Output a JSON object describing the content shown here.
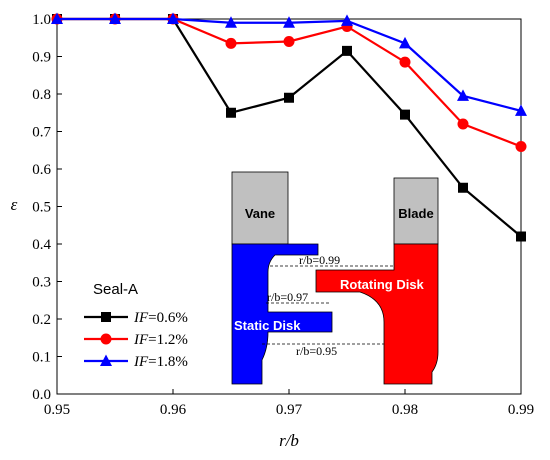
{
  "chart_data": {
    "type": "line",
    "title": "",
    "xlabel": "r/b",
    "ylabel": "ε",
    "xlim": [
      0.95,
      0.99
    ],
    "ylim": [
      0.0,
      1.0
    ],
    "x_ticks": [
      "0.95",
      "0.96",
      "0.97",
      "0.98",
      "0.99"
    ],
    "y_ticks": [
      "0.0",
      "0.1",
      "0.2",
      "0.3",
      "0.4",
      "0.5",
      "0.6",
      "0.7",
      "0.8",
      "0.9",
      "1.0"
    ],
    "x": [
      0.95,
      0.955,
      0.96,
      0.965,
      0.97,
      0.975,
      0.98,
      0.985,
      0.99
    ],
    "legend_title": "Seal-A",
    "legend_position": "bottom-left",
    "series": [
      {
        "name": "IF=0.6%",
        "name_italic": "IF",
        "name_rest": "=0.6%",
        "color": "#000000",
        "marker": "square",
        "values": [
          1.0,
          1.0,
          1.0,
          0.75,
          0.79,
          0.915,
          0.745,
          0.55,
          0.42
        ]
      },
      {
        "name": "IF=1.2%",
        "name_italic": "IF",
        "name_rest": "=1.2%",
        "color": "#ff0000",
        "marker": "circle",
        "values": [
          1.0,
          1.0,
          1.0,
          0.935,
          0.94,
          0.98,
          0.885,
          0.72,
          0.66
        ]
      },
      {
        "name": "IF=1.8%",
        "name_italic": "IF",
        "name_rest": "=1.8%",
        "color": "#0000ff",
        "marker": "triangle",
        "values": [
          1.0,
          1.0,
          1.0,
          0.99,
          0.99,
          0.995,
          0.935,
          0.795,
          0.755
        ]
      }
    ],
    "inset": {
      "vane_label": "Vane",
      "blade_label": "Blade",
      "static_label": "Static Disk",
      "rotating_label": "Rotating Disk",
      "rb_099": "r/b=0.99",
      "rb_097": "r/b=0.97",
      "rb_095": "r/b=0.95",
      "colors": {
        "static": "#0000ff",
        "rotating": "#ff0000",
        "vane_blade": "#c0c0c0"
      }
    }
  }
}
